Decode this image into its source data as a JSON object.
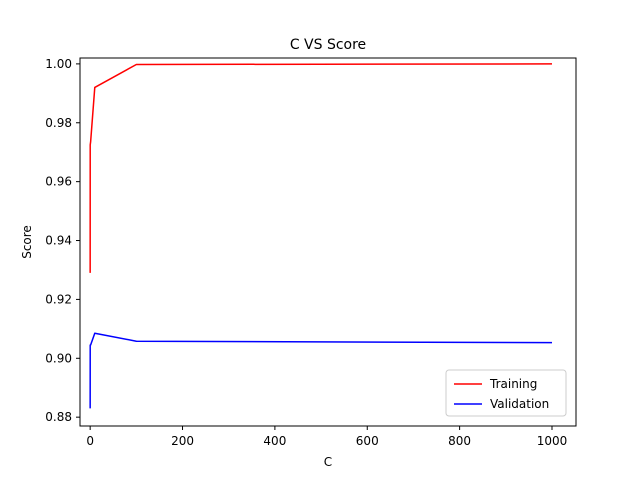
{
  "chart_data": {
    "type": "line",
    "title": "C VS Score",
    "xlabel": "C",
    "ylabel": "Score",
    "xlim": [
      -22,
      1052
    ],
    "ylim": [
      0.877,
      1.002
    ],
    "x_ticks": [
      0,
      200,
      400,
      600,
      800,
      1000
    ],
    "x_tick_labels": [
      "0",
      "200",
      "400",
      "600",
      "800",
      "1000"
    ],
    "y_ticks": [
      0.88,
      0.9,
      0.92,
      0.94,
      0.96,
      0.98,
      1.0
    ],
    "y_tick_labels": [
      "0.88",
      "0.90",
      "0.92",
      "0.94",
      "0.96",
      "0.98",
      "1.00"
    ],
    "grid": false,
    "legend_position": "lower-right",
    "series": [
      {
        "name": "Training",
        "color": "#ff0000",
        "x": [
          0.01,
          0.1,
          1,
          10,
          100,
          1000
        ],
        "y": [
          0.929,
          0.9725,
          0.9735,
          0.992,
          0.9998,
          1.0
        ]
      },
      {
        "name": "Validation",
        "color": "#0000ff",
        "x": [
          0.01,
          0.1,
          1,
          10,
          100,
          1000
        ],
        "y": [
          0.883,
          0.9045,
          0.9045,
          0.9085,
          0.9058,
          0.9053
        ]
      }
    ]
  }
}
